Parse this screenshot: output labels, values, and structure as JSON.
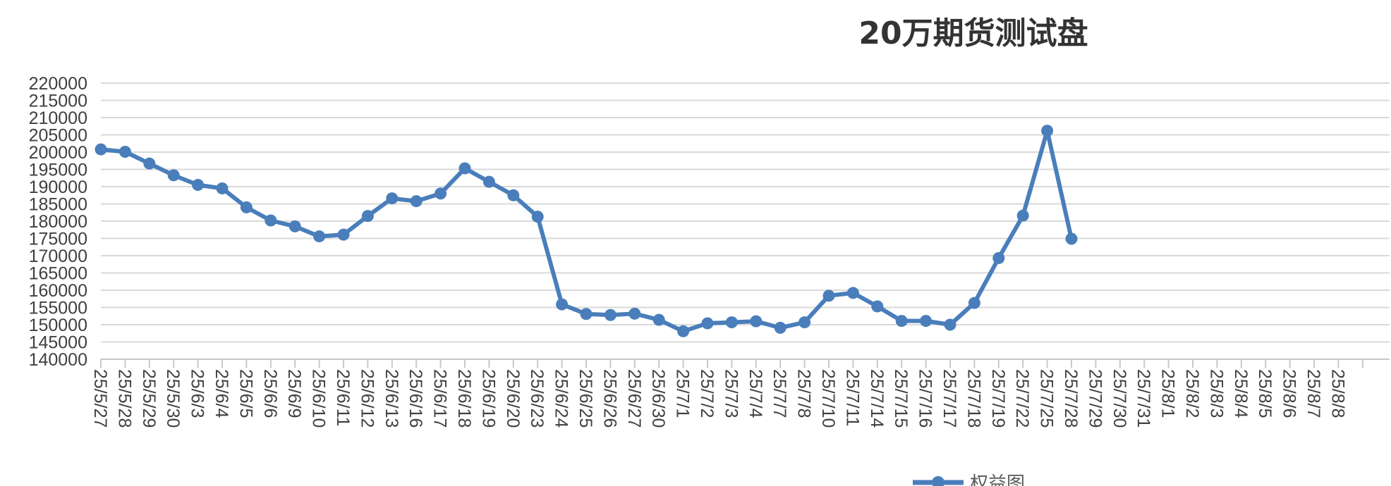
{
  "chart_data": {
    "type": "line",
    "title": "20万期货测试盘",
    "xlabel": "",
    "ylabel": "",
    "ylim": [
      140000,
      220000
    ],
    "y_ticks": [
      140000,
      145000,
      150000,
      155000,
      160000,
      165000,
      170000,
      175000,
      180000,
      185000,
      190000,
      195000,
      200000,
      205000,
      210000,
      215000,
      220000
    ],
    "grid": true,
    "legend_position": "bottom",
    "categories": [
      "25/5/27",
      "25/5/28",
      "25/5/29",
      "25/5/30",
      "25/6/3",
      "25/6/4",
      "25/6/5",
      "25/6/6",
      "25/6/9",
      "25/6/10",
      "25/6/11",
      "25/6/12",
      "25/6/13",
      "25/6/16",
      "25/6/17",
      "25/6/18",
      "25/6/19",
      "25/6/20",
      "25/6/23",
      "25/6/24",
      "25/6/25",
      "25/6/26",
      "25/6/27",
      "25/6/30",
      "25/7/1",
      "25/7/2",
      "25/7/3",
      "25/7/4",
      "25/7/7",
      "25/7/8",
      "25/7/10",
      "25/7/11",
      "25/7/14",
      "25/7/15",
      "25/7/16",
      "25/7/17",
      "25/7/18",
      "25/7/19",
      "25/7/22",
      "25/7/25",
      "25/7/28",
      "25/7/29",
      "25/7/30",
      "25/7/31",
      "25/8/1",
      "25/8/2",
      "25/8/3",
      "25/8/4",
      "25/8/5",
      "25/8/6",
      "25/8/7",
      "25/8/8"
    ],
    "series": [
      {
        "name": "权益图",
        "color": "#4a7ebb",
        "values": [
          200800,
          200100,
          196700,
          193300,
          190500,
          189500,
          184000,
          180200,
          178500,
          175600,
          176100,
          181500,
          186600,
          185800,
          188000,
          195300,
          191400,
          187500,
          181300,
          155900,
          153100,
          152800,
          153200,
          151400,
          148100,
          150400,
          150700,
          151000,
          149100,
          150700,
          158400,
          159200,
          155300,
          151100,
          151100,
          150000,
          156300,
          169300,
          181600,
          206200,
          174900,
          null,
          null,
          null,
          null,
          null,
          null,
          null,
          null,
          null,
          null,
          null
        ]
      }
    ]
  }
}
